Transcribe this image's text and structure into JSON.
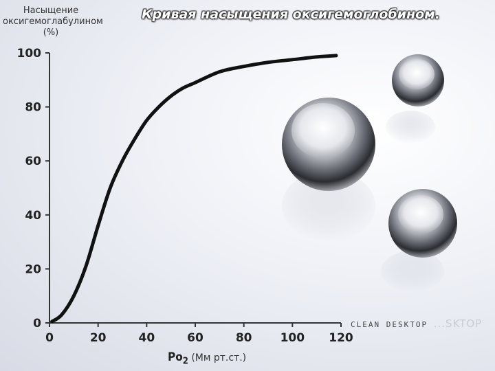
{
  "slide": {
    "title": "Кривая насыщения оксигемоглобином.",
    "ylabel_lines": [
      "Насыщение",
      "оксигемоглабулином",
      "(%)"
    ],
    "xlabel_symbol": "Po",
    "xlabel_sub": "2",
    "xlabel_unit": "(Мм рт.ст.)",
    "watermark_main": "CLEAN DESKTOP",
    "watermark_ghost": "...SKTOP"
  },
  "chart_data": {
    "type": "line",
    "title": "Кривая насыщения оксигемоглобином.",
    "xlabel": "Po2 (Мм рт.ст.)",
    "ylabel": "Насыщение оксигемоглабулином (%)",
    "xlim": [
      0,
      120
    ],
    "ylim": [
      0,
      100
    ],
    "xticks": [
      0,
      20,
      40,
      60,
      80,
      100,
      120
    ],
    "yticks": [
      0,
      20,
      40,
      60,
      80,
      100
    ],
    "grid": false,
    "series": [
      {
        "x": [
          1,
          5,
          10,
          15,
          20,
          25,
          30,
          35,
          40,
          45,
          50,
          55,
          60,
          70,
          80,
          90,
          100,
          110,
          118
        ],
        "y": [
          0.5,
          3,
          10,
          21,
          36,
          50,
          60,
          68,
          75,
          80,
          84,
          87,
          89,
          93,
          95,
          96.5,
          97.5,
          98.5,
          99
        ]
      }
    ],
    "colors": {
      "curve": "#111111",
      "axis": "#333333"
    }
  }
}
